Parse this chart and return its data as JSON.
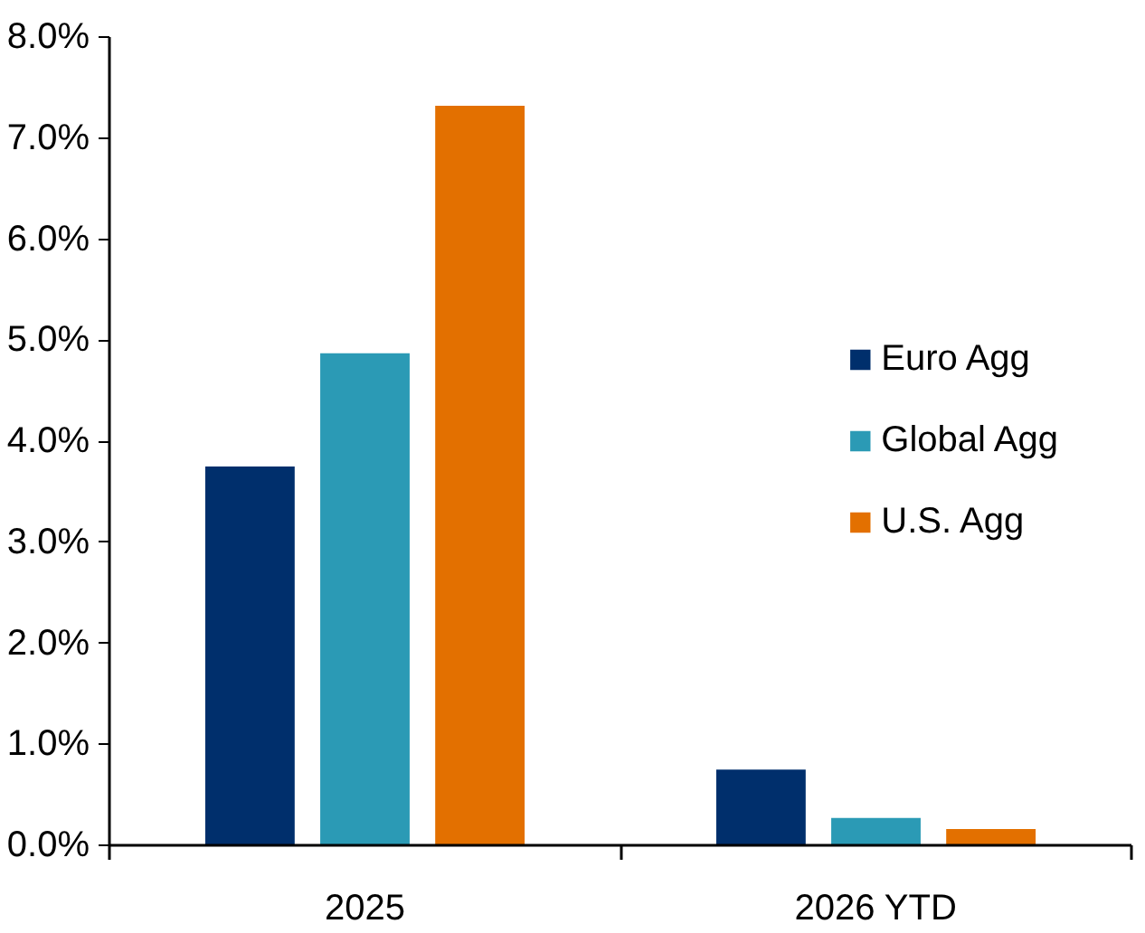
{
  "chart_data": {
    "type": "bar",
    "categories": [
      "2025",
      "2026 YTD"
    ],
    "series": [
      {
        "name": "Euro Agg",
        "color": "#002f6c",
        "values": [
          3.75,
          0.75
        ]
      },
      {
        "name": "Global Agg",
        "color": "#2b9ab5",
        "values": [
          4.87,
          0.27
        ]
      },
      {
        "name": "U.S. Agg",
        "color": "#e37000",
        "values": [
          7.32,
          0.16
        ]
      }
    ],
    "ylim": [
      0,
      8
    ],
    "yticks": [
      {
        "value": 0,
        "label": "0.0%"
      },
      {
        "value": 1,
        "label": "1.0%"
      },
      {
        "value": 2,
        "label": "2.0%"
      },
      {
        "value": 3,
        "label": "3.0%"
      },
      {
        "value": 4,
        "label": "4.0%"
      },
      {
        "value": 5,
        "label": "5.0%"
      },
      {
        "value": 6,
        "label": "6.0%"
      },
      {
        "value": 7,
        "label": "7.0%"
      },
      {
        "value": 8,
        "label": "8.0%"
      }
    ],
    "grid": false,
    "legend": "right"
  }
}
